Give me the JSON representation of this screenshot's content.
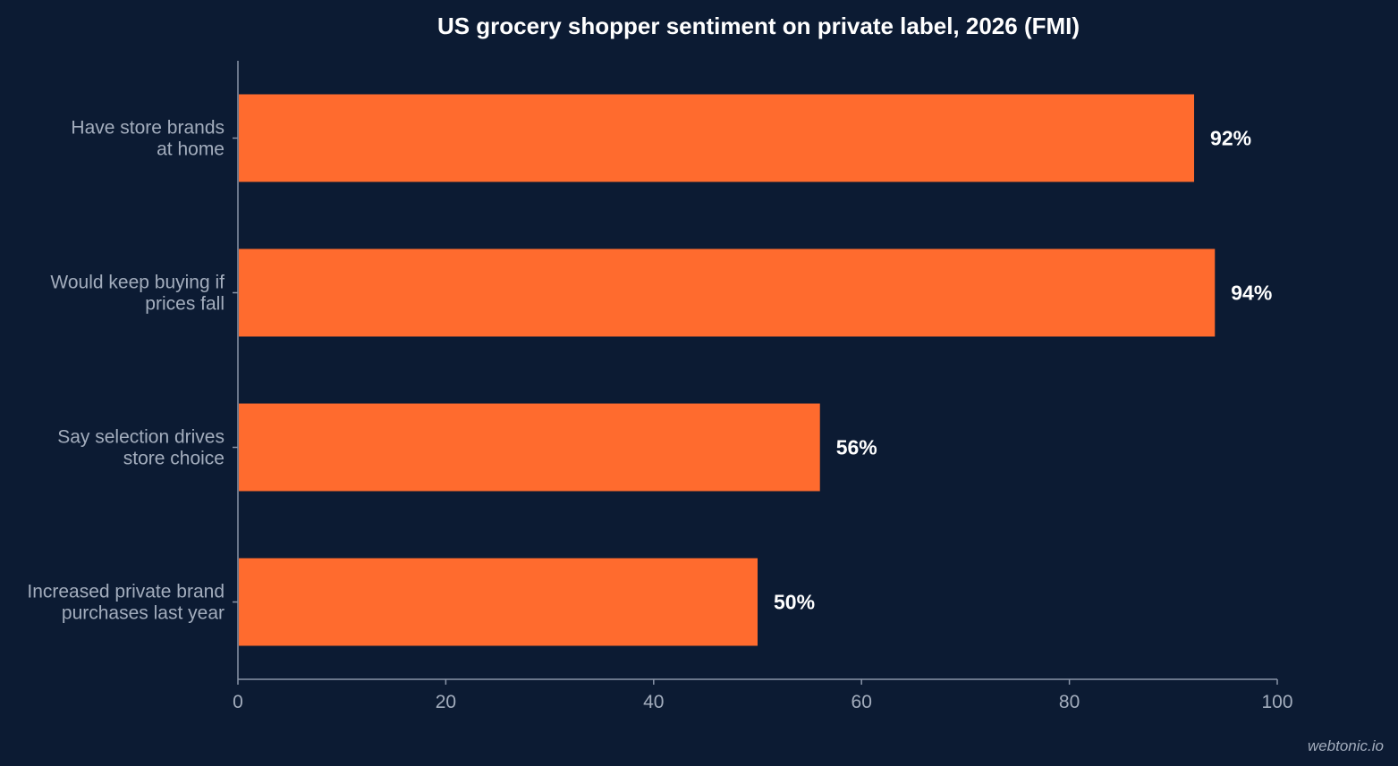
{
  "chart_data": {
    "type": "bar",
    "orientation": "horizontal",
    "title": "US grocery shopper sentiment on private label, 2026 (FMI)",
    "xlabel": "",
    "ylabel": "",
    "categories": [
      [
        "Have store brands",
        "at home"
      ],
      [
        "Would keep buying if",
        "prices fall"
      ],
      [
        "Say selection drives",
        "store choice"
      ],
      [
        "Increased private brand",
        "purchases last year"
      ]
    ],
    "values": [
      92,
      94,
      56,
      50
    ],
    "value_labels": [
      "92%",
      "94%",
      "56%",
      "50%"
    ],
    "xlim": [
      0,
      100
    ],
    "xticks": [
      0,
      20,
      40,
      60,
      80,
      100
    ],
    "xtick_labels": [
      "0",
      "20",
      "40",
      "60",
      "80",
      "100"
    ],
    "grid": false,
    "legend": "none",
    "colors": {
      "background": "#0c1b33",
      "bar": "#ff6b2e",
      "axis": "#8a95a8",
      "text_muted": "#a3adbd",
      "text_strong": "#ffffff"
    }
  },
  "watermark": "webtonic.io"
}
